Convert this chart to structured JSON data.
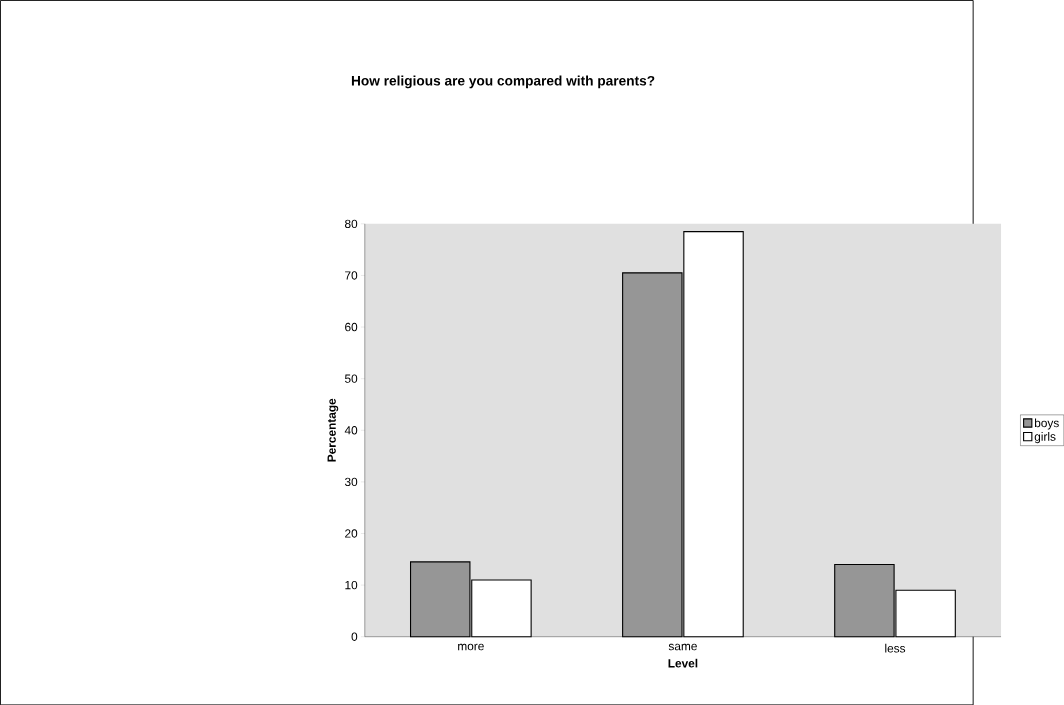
{
  "chart_data": {
    "type": "bar",
    "title": "How religious are you compared with parents?",
    "xlabel": "Level",
    "ylabel": "Percentage",
    "categories": [
      "more",
      "same",
      "less"
    ],
    "series": [
      {
        "name": "boys",
        "color": "#969696",
        "values": [
          14.5,
          70.5,
          14
        ]
      },
      {
        "name": "girls",
        "color": "#ffffff",
        "values": [
          11,
          78.5,
          9
        ]
      }
    ],
    "ylim": [
      0,
      80
    ],
    "yticks": [
      0,
      10,
      20,
      30,
      40,
      50,
      60,
      70,
      80
    ],
    "grid": false,
    "legend": "right"
  }
}
